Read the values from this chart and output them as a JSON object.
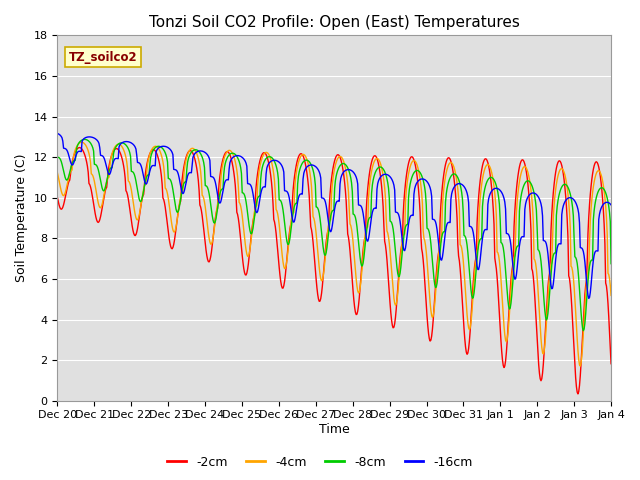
{
  "title": "Tonzi Soil CO2 Profile: Open (East) Temperatures",
  "xlabel": "Time",
  "ylabel": "Soil Temperature (C)",
  "ylim": [
    0,
    18
  ],
  "background_color": "#ffffff",
  "plot_bg_color": "#e0e0e0",
  "grid_color": "#ffffff",
  "series_labels": [
    "-2cm",
    "-4cm",
    "-8cm",
    "-16cm"
  ],
  "series_colors": [
    "#ff0000",
    "#ffa500",
    "#00cc00",
    "#0000ff"
  ],
  "xtick_labels": [
    "Dec 20",
    "Dec 21",
    "Dec 22",
    "Dec 23",
    "Dec 24",
    "Dec 25",
    "Dec 26",
    "Dec 27",
    "Dec 28",
    "Dec 29",
    "Dec 30",
    "Dec 31",
    "Jan 1",
    "Jan 2",
    "Jan 3",
    "Jan 4"
  ],
  "title_fontsize": 11,
  "axis_label_fontsize": 9,
  "tick_fontsize": 8
}
